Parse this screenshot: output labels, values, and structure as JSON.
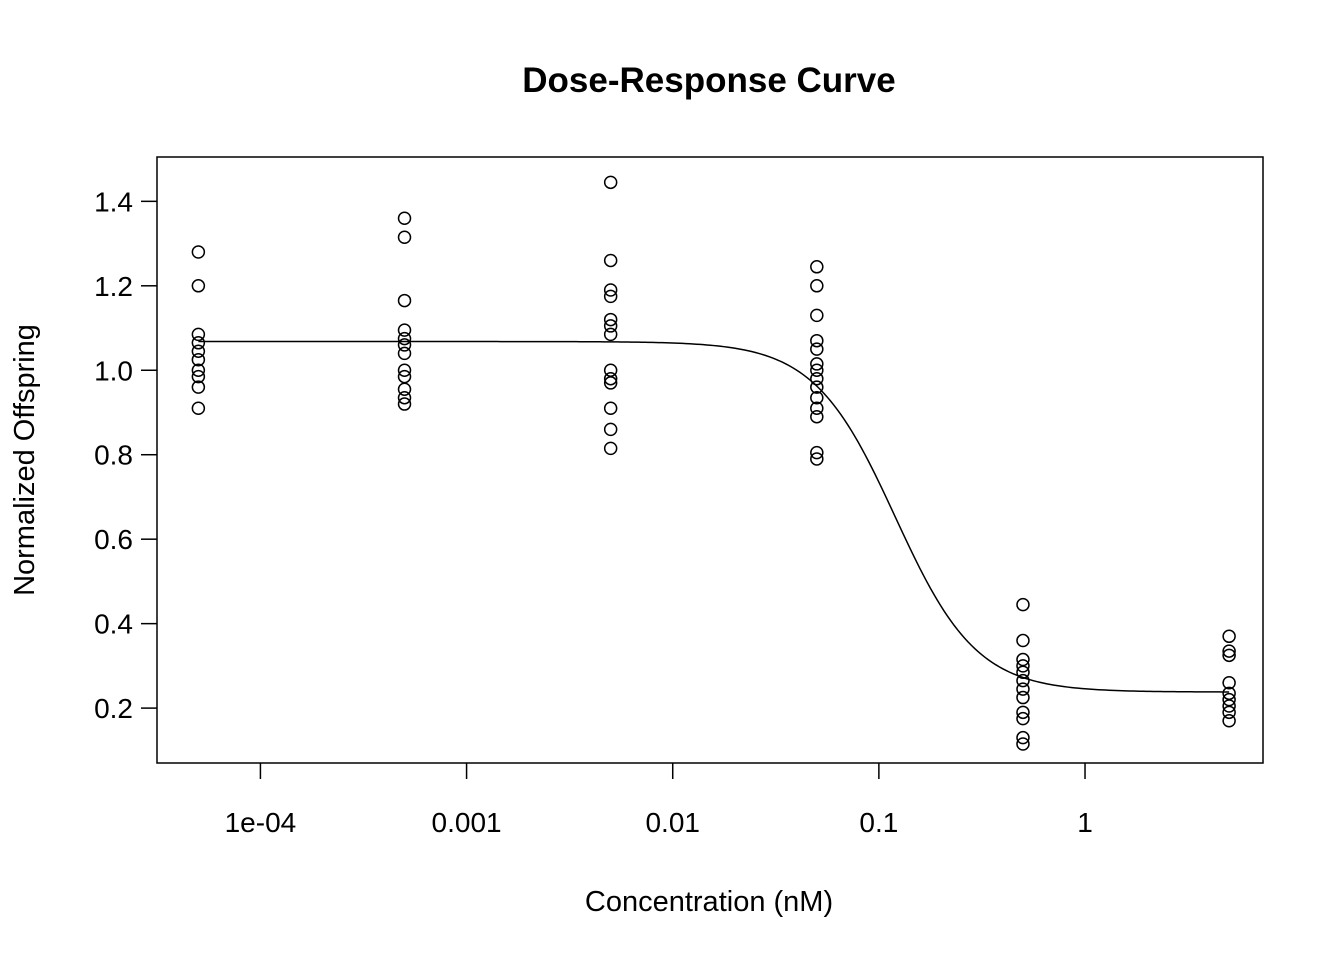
{
  "chart_data": {
    "type": "scatter",
    "title": "Dose-Response Curve",
    "xlabel": "Concentration (nM)",
    "ylabel": "Normalized Offspring",
    "x_scale": "log",
    "xlim": [
      3.15e-05,
      7.3
    ],
    "ylim": [
      0.07,
      1.505
    ],
    "x_ticks": [
      {
        "value": 0.0001,
        "label": "1e-04"
      },
      {
        "value": 0.001,
        "label": "0.001"
      },
      {
        "value": 0.01,
        "label": "0.01"
      },
      {
        "value": 0.1,
        "label": "0.1"
      },
      {
        "value": 1,
        "label": "1"
      }
    ],
    "y_ticks": [
      {
        "value": 0.2,
        "label": "0.2"
      },
      {
        "value": 0.4,
        "label": "0.4"
      },
      {
        "value": 0.6,
        "label": "0.6"
      },
      {
        "value": 0.8,
        "label": "0.8"
      },
      {
        "value": 1.0,
        "label": "1.0"
      },
      {
        "value": 1.2,
        "label": "1.2"
      },
      {
        "value": 1.4,
        "label": "1.4"
      }
    ],
    "grid": false,
    "legend": "none",
    "groups": [
      {
        "x": 5e-05,
        "y": [
          1.28,
          1.2,
          1.085,
          1.065,
          1.045,
          1.025,
          1.0,
          0.985,
          0.96,
          0.91
        ]
      },
      {
        "x": 0.0005,
        "y": [
          1.36,
          1.315,
          1.165,
          1.095,
          1.075,
          1.06,
          1.04,
          1.0,
          0.985,
          0.955,
          0.935,
          0.92
        ]
      },
      {
        "x": 0.005,
        "y": [
          1.445,
          1.26,
          1.19,
          1.175,
          1.12,
          1.105,
          1.085,
          1.0,
          0.98,
          0.97,
          0.91,
          0.86,
          0.815
        ]
      },
      {
        "x": 0.05,
        "y": [
          1.245,
          1.2,
          1.13,
          1.07,
          1.05,
          1.015,
          1.0,
          0.98,
          0.96,
          0.935,
          0.91,
          0.89,
          0.805,
          0.79
        ]
      },
      {
        "x": 0.5,
        "y": [
          0.445,
          0.36,
          0.315,
          0.3,
          0.285,
          0.265,
          0.245,
          0.225,
          0.19,
          0.175,
          0.13,
          0.115
        ]
      },
      {
        "x": 5,
        "y": [
          0.37,
          0.335,
          0.325,
          0.26,
          0.235,
          0.22,
          0.205,
          0.19,
          0.17
        ]
      }
    ],
    "fit_curve": {
      "model": "log-logistic",
      "top": 1.068,
      "bottom": 0.238,
      "ec50": 0.12,
      "hill": 2.2
    }
  }
}
